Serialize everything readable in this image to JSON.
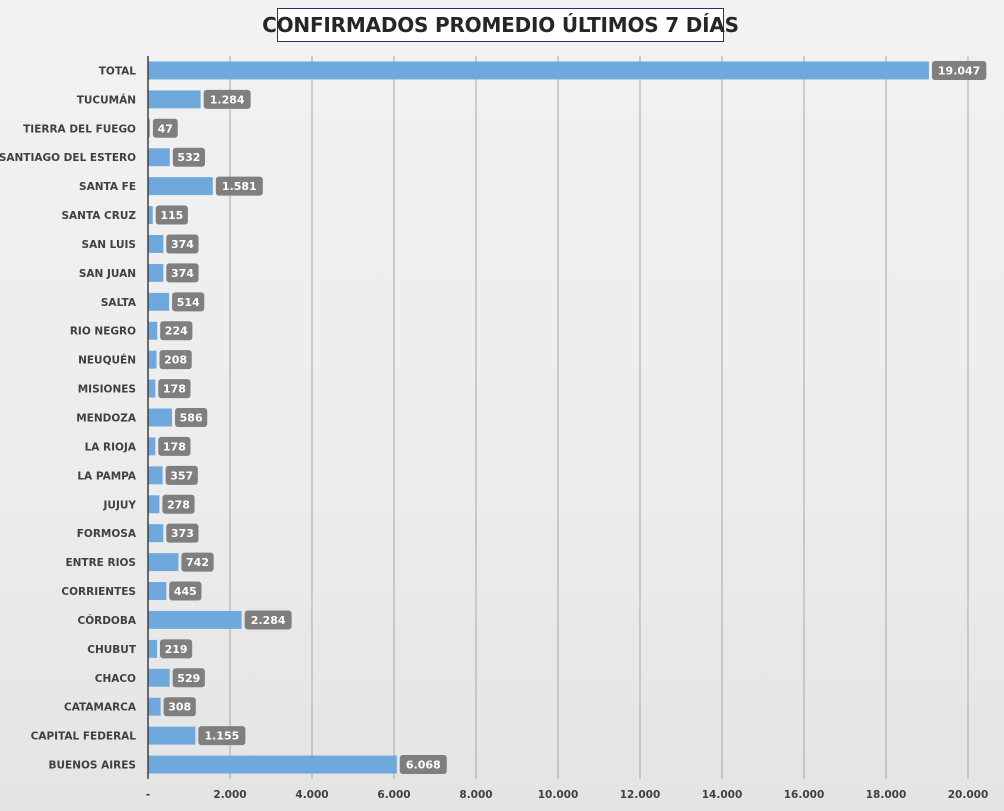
{
  "chart_data": {
    "type": "bar",
    "orientation": "horizontal",
    "title": "CONFIRMADOS PROMEDIO ÚLTIMOS 7 DÍAS",
    "categories": [
      "TOTAL",
      "TUCUMÁN",
      "TIERRA  DEL FUEGO",
      "SANTIAGO  DEL ESTERO",
      "SANTA FE",
      "SANTA CRUZ",
      "SAN LUIS",
      "SAN JUAN",
      "SALTA",
      "RIO  NEGRO",
      "NEUQUÉN",
      "MISIONES",
      "MENDOZA",
      "LA RIOJA",
      "LA PAMPA",
      "JUJUY",
      "FORMOSA",
      "ENTRE  RIOS",
      "CORRIENTES",
      "CÓRDOBA",
      "CHUBUT",
      "CHACO",
      "CATAMARCA",
      "CAPITAL  FEDERAL",
      "BUENOS  AIRES"
    ],
    "values": [
      19047,
      1284,
      47,
      532,
      1581,
      115,
      374,
      374,
      514,
      224,
      208,
      178,
      586,
      178,
      357,
      278,
      373,
      742,
      445,
      2284,
      219,
      529,
      308,
      1155,
      6068
    ],
    "value_labels": [
      "19.047",
      "1.284",
      "47",
      "532",
      "1.581",
      "115",
      "374",
      "374",
      "514",
      "224",
      "208",
      "178",
      "586",
      "178",
      "357",
      "278",
      "373",
      "742",
      "445",
      "2.284",
      "219",
      "529",
      "308",
      "1.155",
      "6.068"
    ],
    "xlim": [
      0,
      20000
    ],
    "x_ticks": [
      0,
      2000,
      4000,
      6000,
      8000,
      10000,
      12000,
      14000,
      16000,
      18000,
      20000
    ],
    "x_tick_labels": [
      "-",
      "2.000",
      "4.000",
      "6.000",
      "8.000",
      "10.000",
      "12.000",
      "14.000",
      "16.000",
      "18.000",
      "20.000"
    ],
    "grid": "vertical",
    "legend": "none",
    "colors": {
      "bar": "#6fa8dc",
      "data_label_bg": "#7f7f7f",
      "grid": "#a6a6a6",
      "axis": "#404040",
      "text": "#404040",
      "title_border": "#1f3864"
    }
  }
}
